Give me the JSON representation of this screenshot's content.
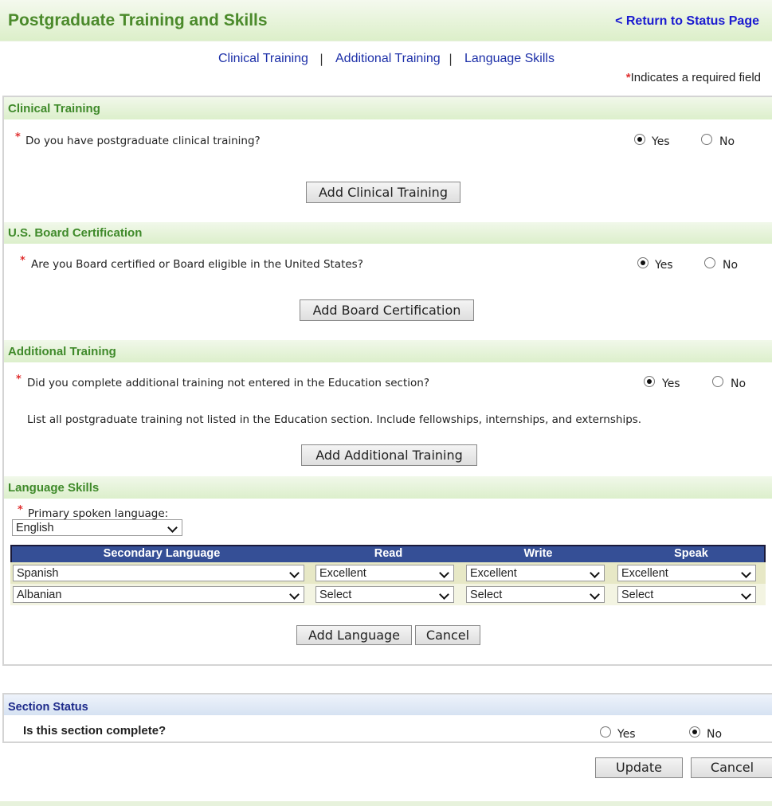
{
  "header": {
    "title": "Postgraduate Training and Skills",
    "return_link": "< Return to Status Page"
  },
  "nav": {
    "items": [
      "Clinical Training",
      "Additional Training",
      "Language Skills"
    ],
    "separator": "|"
  },
  "required_note": {
    "star": "*",
    "text": "Indicates a required field"
  },
  "clinical": {
    "heading": "Clinical Training",
    "question": "Do you have postgraduate clinical training?",
    "yes": "Yes",
    "no": "No",
    "selected": "Yes",
    "button": "Add Clinical Training"
  },
  "board": {
    "heading": "U.S. Board Certification",
    "question": "Are you Board certified or Board eligible in the United States?",
    "yes": "Yes",
    "no": "No",
    "selected": "Yes",
    "button": "Add Board Certification"
  },
  "additional": {
    "heading": "Additional Training",
    "question": "Did you complete additional training not entered in the Education section?",
    "yes": "Yes",
    "no": "No",
    "selected": "Yes",
    "note": "List all postgraduate training not listed in the Education section. Include fellowships, internships, and externships.",
    "button": "Add Additional Training"
  },
  "language": {
    "heading": "Language Skills",
    "primary_label": "Primary spoken language:",
    "primary_value": "English",
    "columns": [
      "Secondary Language",
      "Read",
      "Write",
      "Speak"
    ],
    "rows": [
      [
        "Spanish",
        "Excellent",
        "Excellent",
        "Excellent"
      ],
      [
        "Albanian",
        "Select",
        "Select",
        "Select"
      ]
    ],
    "add_button": "Add Language",
    "cancel_button": "Cancel"
  },
  "status": {
    "heading": "Section Status",
    "question": "Is this section complete?",
    "yes": "Yes",
    "no": "No",
    "selected": "No"
  },
  "actions": {
    "update": "Update",
    "cancel": "Cancel"
  },
  "colors": {
    "green_heading": "#4b8a2b",
    "link": "#1a1ad0",
    "table_header": "#354f96",
    "status_heading": "#1d2a8a",
    "required": "#e03030"
  }
}
